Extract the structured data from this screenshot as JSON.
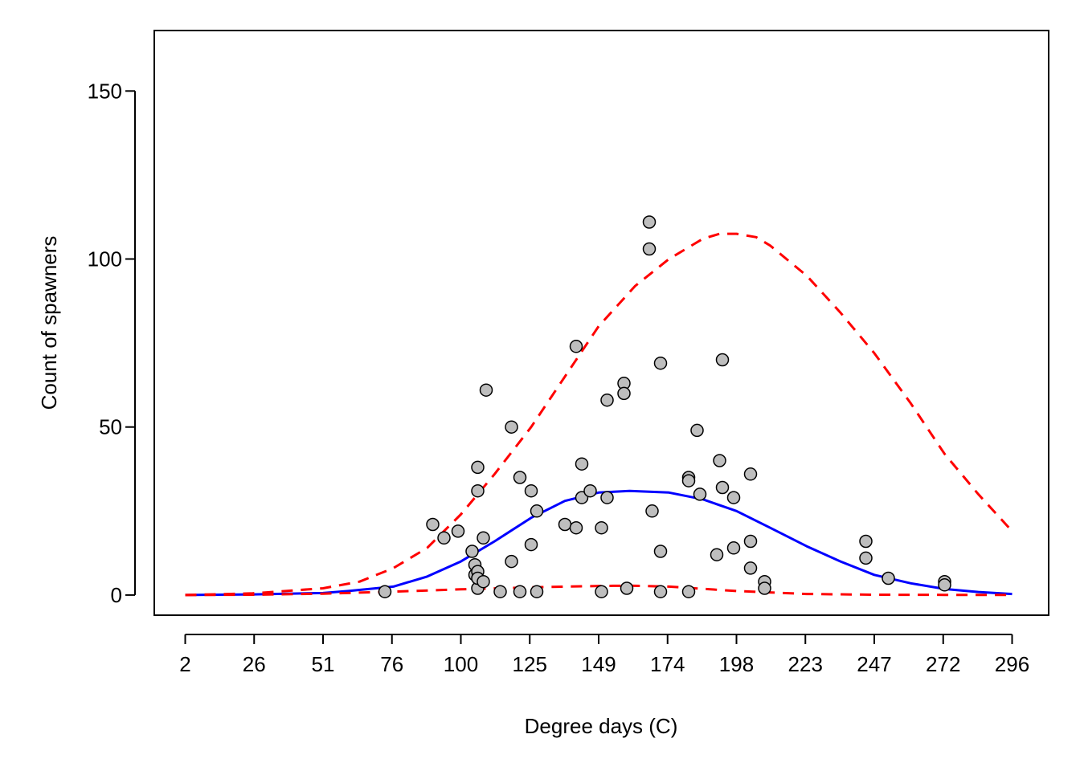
{
  "chart_data": {
    "type": "scatter",
    "title": "",
    "xlabel": "Degree days (C)",
    "ylabel": "Count of spawners",
    "x_tick_labels": [
      "2",
      "26",
      "51",
      "76",
      "100",
      "125",
      "149",
      "174",
      "198",
      "223",
      "247",
      "272",
      "296"
    ],
    "y_ticks": [
      0,
      50,
      100,
      150
    ],
    "xlim": [
      -9,
      309
    ],
    "ylim": [
      -6,
      168
    ],
    "grid": false,
    "legend": "none",
    "colors": {
      "points_fill": "#bebebe",
      "points_stroke": "#000000",
      "fit_line": "#0000ff",
      "bounds_line": "#ff0000"
    },
    "series": [
      {
        "kind": "points",
        "points": [
          [
            73,
            1
          ],
          [
            90,
            21
          ],
          [
            94,
            17
          ],
          [
            99,
            19
          ],
          [
            104,
            13
          ],
          [
            105,
            9
          ],
          [
            105,
            6
          ],
          [
            106,
            2
          ],
          [
            106,
            7
          ],
          [
            106,
            5
          ],
          [
            106,
            38
          ],
          [
            106,
            31
          ],
          [
            108,
            17
          ],
          [
            108,
            4
          ],
          [
            109,
            61
          ],
          [
            114,
            1
          ],
          [
            118,
            50
          ],
          [
            118,
            10
          ],
          [
            121,
            1
          ],
          [
            121,
            35
          ],
          [
            125,
            31
          ],
          [
            125,
            15
          ],
          [
            127,
            25
          ],
          [
            127,
            1
          ],
          [
            137,
            21
          ],
          [
            141,
            74
          ],
          [
            141,
            20
          ],
          [
            143,
            39
          ],
          [
            143,
            29
          ],
          [
            146,
            31
          ],
          [
            150,
            20
          ],
          [
            150,
            1
          ],
          [
            152,
            58
          ],
          [
            152,
            29
          ],
          [
            158,
            63
          ],
          [
            158,
            60
          ],
          [
            159,
            2
          ],
          [
            167,
            111
          ],
          [
            167,
            103
          ],
          [
            168,
            25
          ],
          [
            171,
            69
          ],
          [
            171,
            13
          ],
          [
            171,
            1
          ],
          [
            181,
            35
          ],
          [
            181,
            34
          ],
          [
            181,
            1
          ],
          [
            184,
            49
          ],
          [
            185,
            30
          ],
          [
            191,
            12
          ],
          [
            192,
            40
          ],
          [
            193,
            32
          ],
          [
            193,
            70
          ],
          [
            197,
            29
          ],
          [
            197,
            14
          ],
          [
            203,
            36
          ],
          [
            203,
            16
          ],
          [
            203,
            8
          ],
          [
            208,
            4
          ],
          [
            208,
            2
          ],
          [
            244,
            16
          ],
          [
            244,
            11
          ],
          [
            252,
            5
          ],
          [
            272,
            4
          ],
          [
            272,
            3
          ]
        ]
      },
      {
        "kind": "fit",
        "style": "solid",
        "x": [
          2,
          26,
          51,
          60,
          76,
          88,
          100,
          112,
          125,
          137,
          149,
          160,
          174,
          186,
          198,
          210,
          223,
          235,
          247,
          260,
          272,
          284,
          296
        ],
        "y": [
          0,
          0.2,
          0.6,
          1.2,
          2.5,
          5.5,
          10,
          16,
          23,
          28,
          30.5,
          31,
          30.5,
          28.5,
          25,
          20,
          14.5,
          10,
          6,
          3.5,
          1.8,
          0.9,
          0.3
        ]
      },
      {
        "kind": "upper-bound",
        "style": "dashed",
        "x": [
          2,
          26,
          51,
          64,
          76,
          88,
          100,
          112,
          125,
          137,
          149,
          162,
          174,
          186,
          192,
          198,
          205,
          210,
          223,
          235,
          247,
          260,
          272,
          284,
          296
        ],
        "y": [
          0,
          0.5,
          2,
          4,
          8,
          14,
          24,
          36,
          50,
          65,
          80,
          92,
          100,
          106,
          107.5,
          107.5,
          106.5,
          104,
          95,
          84,
          72,
          57,
          42,
          30,
          19
        ]
      },
      {
        "kind": "lower-bound",
        "style": "dashed",
        "x": [
          2,
          26,
          51,
          76,
          100,
          125,
          149,
          160,
          174,
          198,
          223,
          247,
          272,
          296
        ],
        "y": [
          0,
          0.1,
          0.4,
          1,
          1.7,
          2.3,
          2.7,
          2.8,
          2.5,
          1.2,
          0.3,
          0.1,
          0.05,
          0.02
        ]
      }
    ]
  }
}
